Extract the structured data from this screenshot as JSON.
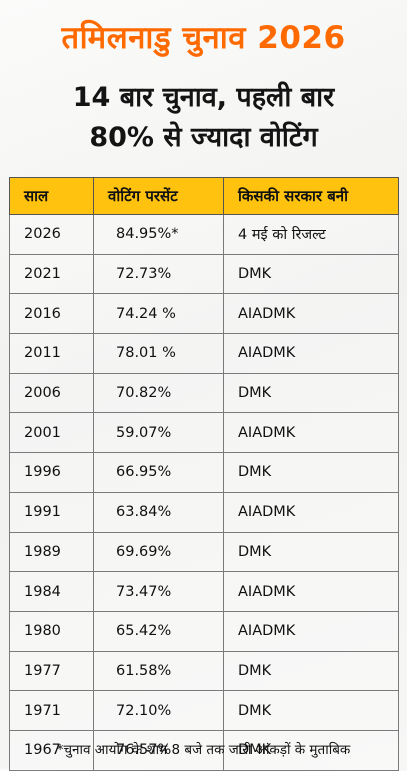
{
  "brand": {
    "title": "तमिलनाडु चुनाव 2026"
  },
  "headline": {
    "line1": "14 बार चुनाव, पहली बार",
    "line2": "80% से ज्यादा वोटिंग"
  },
  "table": {
    "headers": [
      "साल",
      "वोटिंग परसेंट",
      "किसकी सरकार बनी"
    ],
    "rows": [
      {
        "year": "2026",
        "percent": "84.95%*",
        "govt": "4 मई को रिजल्ट"
      },
      {
        "year": "2021",
        "percent": "72.73%",
        "govt": "DMK"
      },
      {
        "year": "2016",
        "percent": "74.24 %",
        "govt": "AIADMK"
      },
      {
        "year": "2011",
        "percent": "78.01 %",
        "govt": "AIADMK"
      },
      {
        "year": "2006",
        "percent": "70.82%",
        "govt": "DMK"
      },
      {
        "year": "2001",
        "percent": "59.07%",
        "govt": "AIADMK"
      },
      {
        "year": "1996",
        "percent": "66.95%",
        "govt": "DMK"
      },
      {
        "year": "1991",
        "percent": "63.84%",
        "govt": "AIADMK"
      },
      {
        "year": "1989",
        "percent": "69.69%",
        "govt": "DMK"
      },
      {
        "year": "1984",
        "percent": "73.47%",
        "govt": "AIADMK"
      },
      {
        "year": "1980",
        "percent": "65.42%",
        "govt": "AIADMK"
      },
      {
        "year": "1977",
        "percent": "61.58%",
        "govt": "DMK"
      },
      {
        "year": "1971",
        "percent": "72.10%",
        "govt": "DMK"
      },
      {
        "year": "1967",
        "percent": "76.57%",
        "govt": "DMK"
      }
    ]
  },
  "footnote": "*चुनाव आयोग के शाम 8 बजे तक जारी आंकड़ों के मुताबिक",
  "colors": {
    "brand": "#ff6a00",
    "header_bg": "#ffc20e"
  }
}
